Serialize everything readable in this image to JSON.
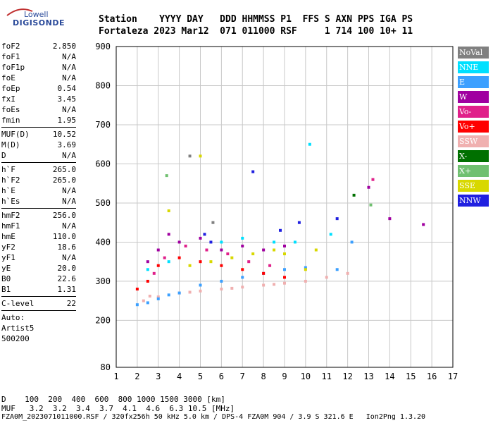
{
  "header": {
    "line1": "Station    YYYY DAY   DDD HHMMSS P1  FFS S AXN PPS IGA PS",
    "line2": "Fortaleza 2023 Mar12  071 011000 RSF     1 714 100 10+ 11"
  },
  "logo": {
    "line1": "Lowell",
    "line2": "DIGISONDE"
  },
  "params": {
    "group1": [
      {
        "k": "foF2",
        "v": "2.850"
      },
      {
        "k": "foF1",
        "v": "N/A"
      },
      {
        "k": "foF1p",
        "v": "N/A"
      },
      {
        "k": "foE",
        "v": "N/A"
      },
      {
        "k": "foEp",
        "v": "0.54"
      },
      {
        "k": "fxI",
        "v": "3.45"
      },
      {
        "k": "foEs",
        "v": "N/A"
      },
      {
        "k": "fmin",
        "v": "1.95"
      }
    ],
    "group2": [
      {
        "k": "MUF(D)",
        "v": "10.52"
      },
      {
        "k": "M(D)",
        "v": "3.69"
      },
      {
        "k": "D",
        "v": "N/A"
      }
    ],
    "group3": [
      {
        "k": "h`F",
        "v": "265.0"
      },
      {
        "k": "h`F2",
        "v": "265.0"
      },
      {
        "k": "h`E",
        "v": "N/A"
      },
      {
        "k": "h`Es",
        "v": "N/A"
      }
    ],
    "group4": [
      {
        "k": "hmF2",
        "v": "256.0"
      },
      {
        "k": "hmF1",
        "v": "N/A"
      },
      {
        "k": "hmE",
        "v": "110.0"
      },
      {
        "k": "yF2",
        "v": "18.6"
      },
      {
        "k": "yF1",
        "v": "N/A"
      },
      {
        "k": "yE",
        "v": "20.0"
      },
      {
        "k": "B0",
        "v": "22.6"
      },
      {
        "k": "B1",
        "v": "1.31"
      }
    ],
    "clevel": {
      "k": "C-level",
      "v": "22"
    },
    "notes": [
      "Auto:",
      "Artist5",
      "500200"
    ]
  },
  "legend": [
    {
      "label": "NoVal",
      "color": "#808080"
    },
    {
      "label": "NNE",
      "color": "#00e0ff"
    },
    {
      "label": "E",
      "color": "#3ca0ff"
    },
    {
      "label": "W",
      "color": "#a000a0"
    },
    {
      "label": "Vo-",
      "color": "#e0208a"
    },
    {
      "label": "Vo+",
      "color": "#ff0000"
    },
    {
      "label": "SSW",
      "color": "#f0b0b0"
    },
    {
      "label": "X-",
      "color": "#007000"
    },
    {
      "label": "X+",
      "color": "#70c070"
    },
    {
      "label": "SSE",
      "color": "#d8d800"
    },
    {
      "label": "NNW",
      "color": "#2020e0"
    }
  ],
  "footer": {
    "line1": "D    100  200  400  600  800 1000 1500 3000 [km]",
    "line2": "MUF   3.2  3.2  3.4  3.7  4.1  4.6  6.3 10.5 [MHz]",
    "line3": "FZA0M_2023071011000.RSF / 320fx256h 50 kHz 5.0 km / DPS-4 FZA0M 904 / 3.9 S 321.6 E   Ion2Png 1.3.20"
  },
  "chart_data": {
    "type": "scatter",
    "title": "",
    "xlabel": "",
    "ylabel": "",
    "xlim": [
      1,
      17
    ],
    "ylim": [
      80,
      900
    ],
    "xticks": [
      1,
      2,
      3,
      4,
      5,
      6,
      7,
      8,
      9,
      10,
      11,
      12,
      13,
      14,
      15,
      16,
      17
    ],
    "yticks": [
      80,
      200,
      300,
      400,
      500,
      600,
      700,
      800,
      900
    ],
    "grid": true,
    "series": [
      {
        "name": "SSW",
        "points": [
          [
            2.3,
            250
          ],
          [
            3,
            260
          ],
          [
            4,
            270
          ],
          [
            5,
            275
          ],
          [
            6,
            280
          ],
          [
            7,
            285
          ],
          [
            8,
            290
          ],
          [
            9,
            295
          ],
          [
            10,
            300
          ],
          [
            11,
            310
          ],
          [
            12,
            320
          ],
          [
            2.6,
            262
          ],
          [
            4.5,
            272
          ],
          [
            6.5,
            282
          ],
          [
            8.5,
            292
          ]
        ]
      },
      {
        "name": "E",
        "points": [
          [
            2,
            240
          ],
          [
            2.5,
            245
          ],
          [
            3,
            255
          ],
          [
            4,
            270
          ],
          [
            5,
            290
          ],
          [
            6,
            300
          ],
          [
            7,
            310
          ],
          [
            8,
            320
          ],
          [
            9,
            330
          ],
          [
            10,
            335
          ],
          [
            11.5,
            330
          ],
          [
            3.5,
            265
          ],
          [
            12.2,
            400
          ]
        ]
      },
      {
        "name": "SSE",
        "points": [
          [
            4.5,
            340
          ],
          [
            5.5,
            350
          ],
          [
            6.5,
            360
          ],
          [
            7.5,
            370
          ],
          [
            8.5,
            380
          ],
          [
            9,
            370
          ],
          [
            10.5,
            380
          ],
          [
            3.5,
            480
          ],
          [
            5,
            620
          ],
          [
            10,
            330
          ]
        ]
      },
      {
        "name": "NNE",
        "points": [
          [
            2.5,
            330
          ],
          [
            3.5,
            350
          ],
          [
            6,
            400
          ],
          [
            7,
            410
          ],
          [
            8.5,
            400
          ],
          [
            9.5,
            400
          ],
          [
            10.2,
            650
          ],
          [
            11.2,
            420
          ]
        ]
      },
      {
        "name": "W",
        "points": [
          [
            2.5,
            350
          ],
          [
            3,
            380
          ],
          [
            3.5,
            420
          ],
          [
            4,
            400
          ],
          [
            5,
            410
          ],
          [
            6,
            380
          ],
          [
            7,
            390
          ],
          [
            8,
            380
          ],
          [
            9,
            390
          ],
          [
            13,
            540
          ],
          [
            14,
            460
          ],
          [
            15.6,
            445
          ]
        ]
      },
      {
        "name": "Vo-",
        "points": [
          [
            2.8,
            320
          ],
          [
            3.3,
            360
          ],
          [
            4.3,
            390
          ],
          [
            5.3,
            380
          ],
          [
            6.3,
            370
          ],
          [
            7.3,
            350
          ],
          [
            8.3,
            340
          ],
          [
            13.2,
            560
          ]
        ]
      },
      {
        "name": "Vo+",
        "points": [
          [
            2,
            280
          ],
          [
            2.5,
            300
          ],
          [
            3,
            340
          ],
          [
            4,
            360
          ],
          [
            5,
            350
          ],
          [
            6,
            340
          ],
          [
            7,
            330
          ],
          [
            8,
            320
          ],
          [
            9,
            310
          ]
        ]
      },
      {
        "name": "NNW",
        "points": [
          [
            5.2,
            420
          ],
          [
            5.5,
            400
          ],
          [
            7.5,
            580
          ],
          [
            8.8,
            430
          ],
          [
            9.7,
            450
          ],
          [
            11.5,
            460
          ]
        ]
      },
      {
        "name": "X-",
        "points": [
          [
            12.3,
            520
          ]
        ]
      },
      {
        "name": "X+",
        "points": [
          [
            13.1,
            495
          ],
          [
            3.4,
            570
          ]
        ]
      },
      {
        "name": "NoVal",
        "points": [
          [
            4.5,
            620
          ],
          [
            5.6,
            450
          ]
        ]
      }
    ]
  }
}
